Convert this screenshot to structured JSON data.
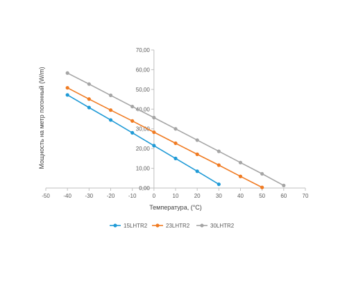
{
  "chart_data": {
    "type": "line",
    "xlabel": "Температура, (°C)",
    "ylabel": "Мощность на метр погонный (W/m)",
    "xlim": [
      -50,
      70
    ],
    "ylim": [
      0,
      70
    ],
    "x_ticks": [
      -50,
      -40,
      -30,
      -20,
      -10,
      0,
      10,
      20,
      30,
      40,
      50,
      60,
      70
    ],
    "y_ticks": [
      "0,00",
      "10,00",
      "20,00",
      "30,00",
      "40,00",
      "50,00",
      "60,00",
      "70,00"
    ],
    "y_tick_values": [
      0,
      10,
      20,
      30,
      40,
      50,
      60,
      70
    ],
    "grid": false,
    "legend_position": "bottom",
    "series": [
      {
        "name": "15LHTR2",
        "color": "#1f9ad6",
        "x": [
          -40,
          -30,
          -20,
          -10,
          0,
          10,
          20,
          30
        ],
        "values": [
          47.2,
          40.8,
          34.5,
          28.0,
          21.5,
          15.0,
          8.5,
          1.9
        ]
      },
      {
        "name": "23LHTR2",
        "color": "#f07b22",
        "x": [
          -40,
          -30,
          -20,
          -10,
          0,
          10,
          20,
          30,
          40,
          50
        ],
        "values": [
          50.8,
          45.1,
          39.5,
          34.0,
          28.3,
          22.7,
          17.1,
          11.6,
          5.9,
          0.3
        ]
      },
      {
        "name": "30LHTR2",
        "color": "#a5a5a5",
        "x": [
          -40,
          -30,
          -20,
          -10,
          0,
          10,
          20,
          30,
          40,
          50,
          60
        ],
        "values": [
          58.3,
          52.7,
          47.0,
          41.3,
          35.7,
          30.0,
          24.3,
          18.6,
          12.9,
          7.2,
          1.3
        ]
      }
    ]
  }
}
